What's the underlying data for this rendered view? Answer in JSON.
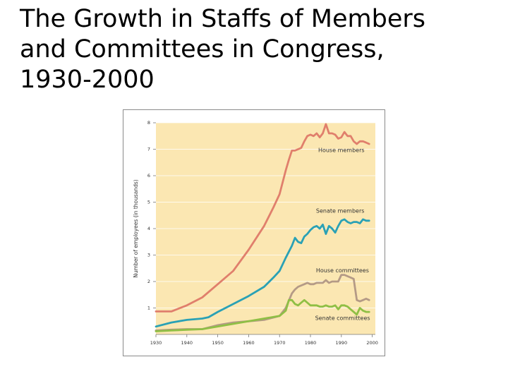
{
  "slide": {
    "title_lines": [
      "The Growth in Staffs of Members",
      "and Committees in Congress,",
      "1930-2000"
    ]
  },
  "chart_data": {
    "type": "line",
    "title": "The Growth in Staffs of Members and Committees in Congress, 1930-2000",
    "xlabel": "",
    "ylabel": "Number of employees (in thousands)",
    "xlim": [
      1930,
      2001
    ],
    "ylim": [
      0,
      8
    ],
    "xticks": [
      "1930",
      "1940",
      "1950",
      "1960",
      "1970",
      "1980",
      "1990",
      "2000"
    ],
    "yticks": [
      "1",
      "2",
      "3",
      "4",
      "5",
      "6",
      "7",
      "8"
    ],
    "background": "#fbe7b2",
    "series": [
      {
        "name": "House members",
        "color": "#e07f6c",
        "x": [
          1930,
          1935,
          1940,
          1945,
          1950,
          1955,
          1960,
          1965,
          1968,
          1970,
          1972,
          1973,
          1974,
          1975,
          1977,
          1978,
          1979,
          1980,
          1981,
          1982,
          1983,
          1984,
          1985,
          1986,
          1987,
          1988,
          1989,
          1990,
          1991,
          1992,
          1993,
          1994,
          1995,
          1996,
          1997,
          1998,
          1999
        ],
        "values": [
          0.87,
          0.87,
          1.1,
          1.4,
          1.9,
          2.4,
          3.2,
          4.1,
          4.8,
          5.3,
          6.2,
          6.6,
          6.95,
          6.95,
          7.05,
          7.3,
          7.5,
          7.55,
          7.5,
          7.6,
          7.45,
          7.6,
          7.95,
          7.6,
          7.6,
          7.55,
          7.4,
          7.45,
          7.65,
          7.5,
          7.5,
          7.3,
          7.2,
          7.3,
          7.3,
          7.25,
          7.2
        ]
      },
      {
        "name": "Senate members",
        "color": "#2aa1b5",
        "x": [
          1930,
          1935,
          1940,
          1945,
          1947,
          1950,
          1955,
          1960,
          1965,
          1968,
          1970,
          1972,
          1974,
          1975,
          1976,
          1977,
          1978,
          1979,
          1980,
          1981,
          1982,
          1983,
          1984,
          1985,
          1986,
          1987,
          1988,
          1989,
          1990,
          1991,
          1992,
          1993,
          1994,
          1995,
          1996,
          1997,
          1998,
          1999
        ],
        "values": [
          0.3,
          0.45,
          0.55,
          0.6,
          0.65,
          0.85,
          1.15,
          1.45,
          1.8,
          2.15,
          2.4,
          2.9,
          3.35,
          3.65,
          3.5,
          3.45,
          3.7,
          3.8,
          3.95,
          4.05,
          4.1,
          4.0,
          4.15,
          3.8,
          4.1,
          4.0,
          3.85,
          4.1,
          4.3,
          4.35,
          4.25,
          4.2,
          4.25,
          4.25,
          4.2,
          4.35,
          4.3,
          4.3
        ]
      },
      {
        "name": "House committees",
        "color": "#b49a86",
        "x": [
          1930,
          1935,
          1940,
          1945,
          1950,
          1955,
          1960,
          1965,
          1970,
          1972,
          1974,
          1975,
          1976,
          1977,
          1978,
          1979,
          1980,
          1981,
          1982,
          1983,
          1984,
          1985,
          1986,
          1987,
          1988,
          1989,
          1990,
          1991,
          1992,
          1993,
          1994,
          1995,
          1996,
          1997,
          1998,
          1999
        ],
        "values": [
          0.15,
          0.18,
          0.2,
          0.2,
          0.35,
          0.45,
          0.5,
          0.55,
          0.7,
          1.0,
          1.55,
          1.7,
          1.8,
          1.85,
          1.9,
          1.95,
          1.9,
          1.9,
          1.95,
          1.95,
          1.95,
          2.05,
          1.95,
          2.0,
          2.0,
          2.0,
          2.25,
          2.25,
          2.2,
          2.15,
          2.1,
          1.3,
          1.25,
          1.3,
          1.35,
          1.3
        ]
      },
      {
        "name": "Senate committees",
        "color": "#8fbf45",
        "x": [
          1930,
          1935,
          1940,
          1945,
          1950,
          1955,
          1960,
          1965,
          1970,
          1972,
          1973,
          1974,
          1975,
          1976,
          1977,
          1978,
          1979,
          1980,
          1981,
          1982,
          1983,
          1984,
          1985,
          1986,
          1987,
          1988,
          1989,
          1990,
          1991,
          1992,
          1993,
          1994,
          1995,
          1996,
          1997,
          1998,
          1999
        ],
        "values": [
          0.12,
          0.15,
          0.18,
          0.2,
          0.3,
          0.4,
          0.5,
          0.6,
          0.7,
          0.9,
          1.3,
          1.3,
          1.15,
          1.1,
          1.2,
          1.3,
          1.2,
          1.1,
          1.1,
          1.1,
          1.05,
          1.05,
          1.1,
          1.05,
          1.05,
          1.1,
          0.95,
          1.1,
          1.1,
          1.05,
          0.95,
          0.85,
          0.75,
          1.0,
          0.9,
          0.85,
          0.85
        ]
      }
    ]
  }
}
